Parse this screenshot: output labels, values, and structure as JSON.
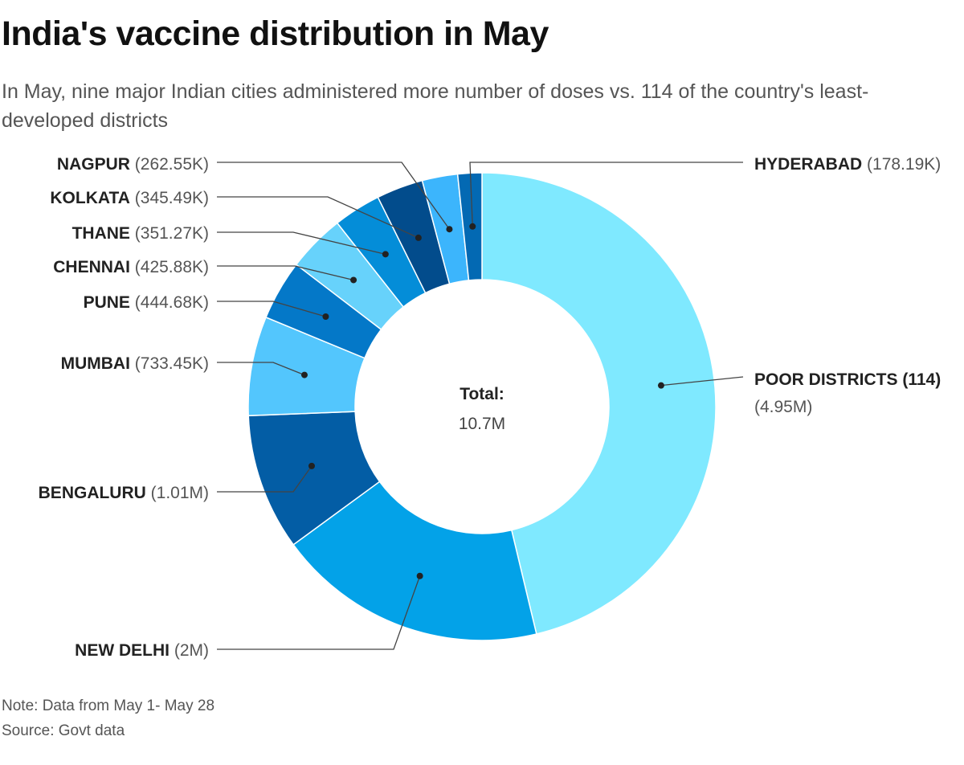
{
  "title": "India's vaccine distribution in May",
  "subtitle": "In May, nine major Indian cities administered more number of doses vs. 114 of the country's least-developed districts",
  "footer": {
    "note": "Note: Data from May 1- May 28",
    "source": "Source: Govt data"
  },
  "chart_data": {
    "type": "pie",
    "variant": "donut",
    "center_label": "Total:",
    "center_value": "10.7M",
    "slices": [
      {
        "name": "POOR DISTRICTS (114)",
        "value": 4950000,
        "label": "(4.95M)",
        "color": "#7fe9ff"
      },
      {
        "name": "NEW DELHI",
        "value": 2000000,
        "label": "(2M)",
        "color": "#03a2e8"
      },
      {
        "name": "BENGALURU",
        "value": 1010000,
        "label": "(1.01M)",
        "color": "#035da5"
      },
      {
        "name": "MUMBAI",
        "value": 733450,
        "label": "(733.45K)",
        "color": "#53c6fd"
      },
      {
        "name": "PUNE",
        "value": 444680,
        "label": "(444.68K)",
        "color": "#0478c8"
      },
      {
        "name": "CHENNAI",
        "value": 425880,
        "label": "(425.88K)",
        "color": "#67d2fb"
      },
      {
        "name": "THANE",
        "value": 351270,
        "label": "(351.27K)",
        "color": "#048dd8"
      },
      {
        "name": "KOLKATA",
        "value": 345490,
        "label": "(345.49K)",
        "color": "#024c8c"
      },
      {
        "name": "NAGPUR",
        "value": 262550,
        "label": "(262.55K)",
        "color": "#3cb5fc"
      },
      {
        "name": "HYDERABAD",
        "value": 178190,
        "label": "(178.19K)",
        "color": "#0369b3"
      }
    ]
  }
}
